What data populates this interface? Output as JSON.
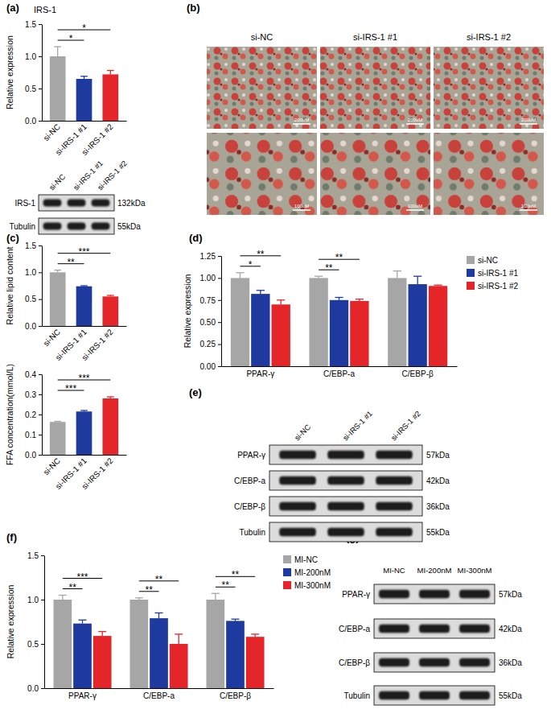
{
  "chart_data": [
    {
      "type": "bar",
      "title": "IRS-1",
      "y_label": "Relative expression",
      "categories": [
        "si-NC",
        "si-IRS-1 #1",
        "si-IRS-1 #2"
      ],
      "values": [
        1.0,
        0.65,
        0.72
      ],
      "error": [
        0.15,
        0.04,
        0.06
      ],
      "colors": [
        "#a6a6a6",
        "#1f3a9f",
        "#e4262a"
      ],
      "ylim": [
        0,
        1.5
      ],
      "yticks": [
        {
          "value": 0,
          "label": "0.0"
        },
        0.5,
        {
          "value": 1,
          "label": "1.0"
        },
        1.5
      ],
      "annotations": [
        {
          "text": "*",
          "from": "si-NC",
          "to": "si-IRS-1 #1"
        },
        {
          "text": "*",
          "from": "si-NC",
          "to": "si-IRS-1 #2"
        }
      ]
    },
    {
      "type": "bar",
      "y_label": "Relative lipid content",
      "categories": [
        "si-NC",
        "si-IRS-1 #1",
        "si-IRS-1 #2"
      ],
      "values": [
        1.0,
        0.74,
        0.55
      ],
      "error": [
        0.04,
        0.01,
        0.02
      ],
      "colors": [
        "#a6a6a6",
        "#1f3a9f",
        "#e4262a"
      ],
      "ylim": [
        0,
        1.5
      ],
      "yticks": [
        {
          "value": 0,
          "label": "0.0"
        },
        0.5,
        {
          "value": 1,
          "label": "1.0"
        },
        1.5
      ],
      "annotations": [
        {
          "text": "**",
          "from": "si-NC",
          "to": "si-IRS-1 #1"
        },
        {
          "text": "***",
          "from": "si-NC",
          "to": "si-IRS-1 #2"
        }
      ]
    },
    {
      "type": "bar",
      "y_label": "FFA concentration(mmol/L)",
      "categories": [
        "si-NC",
        "si-IRS-1 #1",
        "si-IRS-1 #2"
      ],
      "values": [
        0.163,
        0.215,
        0.28
      ],
      "error": [
        0.003,
        0.005,
        0.008
      ],
      "colors": [
        "#a6a6a6",
        "#1f3a9f",
        "#e4262a"
      ],
      "ylim": [
        0,
        0.4
      ],
      "yticks": [
        {
          "value": 0,
          "label": "0.0"
        },
        0.1,
        0.2,
        0.3,
        0.4
      ],
      "annotations": [
        {
          "text": "***",
          "from": "si-NC",
          "to": "si-IRS-1 #1"
        },
        {
          "text": "***",
          "from": "si-NC",
          "to": "si-IRS-1 #2"
        }
      ]
    },
    {
      "type": "bar",
      "y_label": "Relative expression",
      "categories": [
        "PPAR-γ",
        "C/EBP-a",
        "C/EBP-β"
      ],
      "series": [
        {
          "name": "si-NC",
          "color": "#a6a6a6",
          "values": [
            1.0,
            1.0,
            1.0
          ],
          "error": [
            0.06,
            0.02,
            0.08
          ]
        },
        {
          "name": "si-IRS-1 #1",
          "color": "#1f3a9f",
          "values": [
            0.82,
            0.75,
            0.93
          ],
          "error": [
            0.04,
            0.03,
            0.09
          ]
        },
        {
          "name": "si-IRS-1 #2",
          "color": "#e4262a",
          "values": [
            0.7,
            0.74,
            0.91
          ],
          "error": [
            0.05,
            0.02,
            0.01
          ]
        }
      ],
      "legend": "upper right",
      "ylim": [
        0,
        1.25
      ],
      "yticks": [
        {
          "value": 0,
          "label": "0.00"
        },
        0.25,
        {
          "value": 0.5,
          "label": "0.50"
        },
        0.75,
        {
          "value": 1,
          "label": "1.00"
        },
        1.25
      ],
      "annotations": [
        {
          "group": "PPAR-γ",
          "from": "si-NC",
          "to": "si-IRS-1 #1",
          "text": "*"
        },
        {
          "group": "PPAR-γ",
          "from": "si-NC",
          "to": "si-IRS-1 #2",
          "text": "**"
        },
        {
          "group": "C/EBP-a",
          "from": "si-NC",
          "to": "si-IRS-1 #1",
          "text": "**"
        },
        {
          "group": "C/EBP-a",
          "from": "si-NC",
          "to": "si-IRS-1 #2",
          "text": "**"
        }
      ]
    },
    {
      "type": "bar",
      "y_label": "Relative expression",
      "categories": [
        "PPAR-γ",
        "C/EBP-a",
        "C/EBP-β"
      ],
      "series": [
        {
          "name": "MI-NC",
          "color": "#a6a6a6",
          "values": [
            1.0,
            1.0,
            1.0
          ],
          "error": [
            0.05,
            0.02,
            0.07
          ]
        },
        {
          "name": "MI-200nM",
          "color": "#1f3a9f",
          "values": [
            0.73,
            0.79,
            0.76
          ],
          "error": [
            0.04,
            0.06,
            0.02
          ]
        },
        {
          "name": "MI-300nM",
          "color": "#e4262a",
          "values": [
            0.59,
            0.5,
            0.58
          ],
          "error": [
            0.05,
            0.11,
            0.03
          ]
        }
      ],
      "legend": "upper right",
      "ylim": [
        0,
        1.5
      ],
      "yticks": [
        {
          "value": 0,
          "label": "0.0"
        },
        0.5,
        {
          "value": 1,
          "label": "1.0"
        },
        1.5
      ],
      "annotations": [
        {
          "group": "PPAR-γ",
          "from": "MI-NC",
          "to": "MI-200nM",
          "text": "**"
        },
        {
          "group": "PPAR-γ",
          "from": "MI-NC",
          "to": "MI-300nM",
          "text": "***"
        },
        {
          "group": "C/EBP-a",
          "from": "MI-NC",
          "to": "MI-200nM",
          "text": "**"
        },
        {
          "group": "C/EBP-a",
          "from": "MI-NC",
          "to": "MI-300nM",
          "text": "**"
        },
        {
          "group": "C/EBP-β",
          "from": "MI-NC",
          "to": "MI-200nM",
          "text": "**"
        },
        {
          "group": "C/EBP-β",
          "from": "MI-NC",
          "to": "MI-300nM",
          "text": "**"
        }
      ]
    }
  ],
  "panel_labels": [
    "(a)",
    "(b)",
    "(c)",
    "(d)",
    "(e)",
    "(f)",
    "(g)"
  ],
  "images": {
    "columns": [
      "si-NC",
      "si-IRS-1 #1",
      "si-IRS-1 #2"
    ],
    "scale_bars": [
      "200uM",
      "100uM"
    ]
  },
  "blots": [
    {
      "lanes": [
        "si-NC",
        "si-IRS-1 #1",
        "si-IRS-1 #2"
      ],
      "rows": [
        {
          "protein": "IRS-1",
          "size": "132kDa"
        },
        {
          "protein": "Tubulin",
          "size": "55kDa"
        }
      ]
    },
    {
      "lanes": [
        "si-NC",
        "si-IRS-1 #1",
        "si-IRS-1 #2"
      ],
      "rows": [
        {
          "protein": "PPAR-γ",
          "size": "57kDa"
        },
        {
          "protein": "C/EBP-a",
          "size": "42kDa"
        },
        {
          "protein": "C/EBP-β",
          "size": "36kDa"
        },
        {
          "protein": "Tubulin",
          "size": "55kDa"
        }
      ]
    },
    {
      "lanes": [
        "MI-NC",
        "MI-200nM",
        "MI-300nM"
      ],
      "rows": [
        {
          "protein": "PPAR-γ",
          "size": "57kDa"
        },
        {
          "protein": "C/EBP-a",
          "size": "42kDa"
        },
        {
          "protein": "C/EBP-β",
          "size": "36kDa"
        },
        {
          "protein": "Tubulin",
          "size": "55kDa"
        }
      ]
    }
  ]
}
